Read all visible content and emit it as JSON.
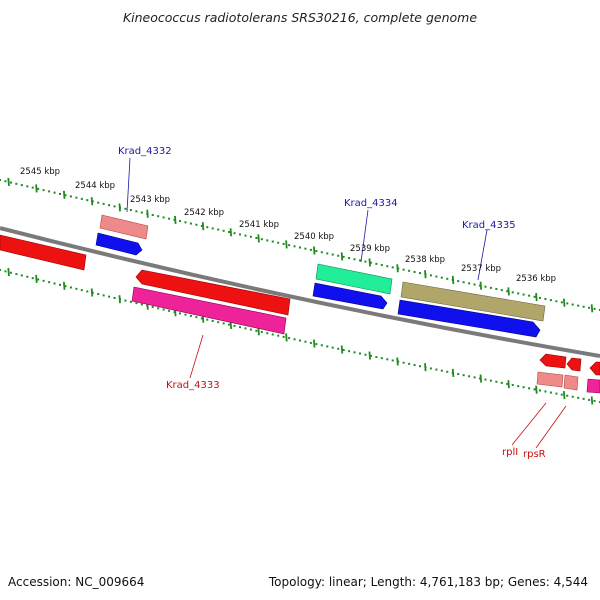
{
  "title": "Kineococcus radiotolerans SRS30216, complete genome",
  "footer": {
    "accession": "Accession: NC_009664",
    "summary": "Topology: linear; Length: 4,761,183 bp; Genes: 4,544"
  },
  "scale_labels": [
    "2545 kbp",
    "2544 kbp",
    "2543 kbp",
    "2542 kbp",
    "2541 kbp",
    "2540 kbp",
    "2539 kbp",
    "2538 kbp",
    "2537 kbp",
    "2536 kbp"
  ],
  "gene_labels": {
    "krad_4332": "Krad_4332",
    "krad_4333": "Krad_4333",
    "krad_4334": "Krad_4334",
    "krad_4335": "Krad_4335",
    "rpll": "rplI",
    "rpsr": "rpsR"
  },
  "colors": {
    "backbone": "#808080",
    "scale_dots": "#1f8a1f",
    "forward_cds": "#0000ee",
    "reverse_cds": "#ee0000",
    "magenta_cds": "#ee1199",
    "pink_cds": "#ee8888",
    "teal_cds": "#22ee99",
    "olive_cds": "#aaa066"
  }
}
